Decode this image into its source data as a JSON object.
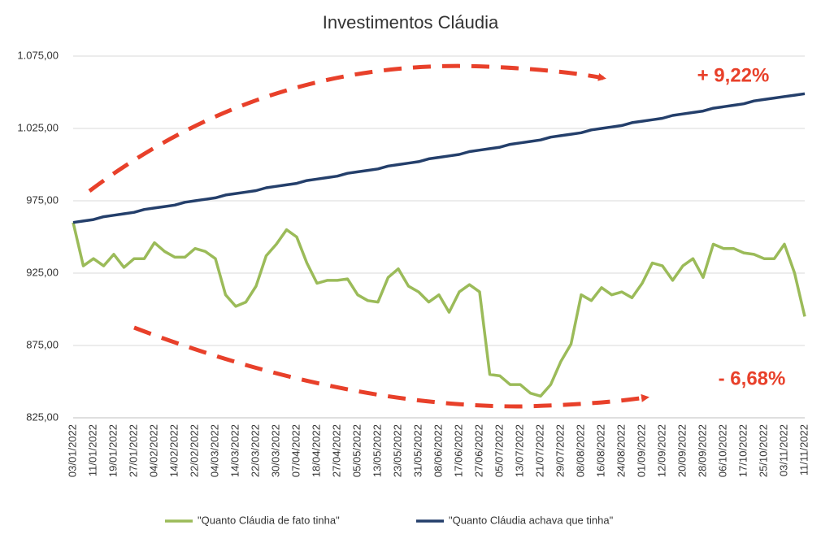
{
  "chart_data": {
    "type": "line",
    "title": "Investimentos Cláudia",
    "categories": [
      "03/01/2022",
      null,
      "11/01/2022",
      null,
      "19/01/2022",
      null,
      "27/01/2022",
      null,
      "04/02/2022",
      null,
      "14/02/2022",
      null,
      "22/02/2022",
      null,
      "04/03/2022",
      null,
      "14/03/2022",
      null,
      "22/03/2022",
      null,
      "30/03/2022",
      null,
      "07/04/2022",
      null,
      "18/04/2022",
      null,
      "27/04/2022",
      null,
      "05/05/2022",
      null,
      "13/05/2022",
      null,
      "23/05/2022",
      null,
      "31/05/2022",
      null,
      "08/06/2022",
      null,
      "17/06/2022",
      null,
      "27/06/2022",
      null,
      "05/07/2022",
      null,
      "13/07/2022",
      null,
      "21/07/2022",
      null,
      "29/07/2022",
      null,
      "08/08/2022",
      null,
      "16/08/2022",
      null,
      "24/08/2022",
      null,
      "01/09/2022",
      null,
      "12/09/2022",
      null,
      "20/09/2022",
      null,
      "28/09/2022",
      null,
      "06/10/2022",
      null,
      "17/10/2022",
      null,
      "25/10/2022",
      null,
      "03/11/2022",
      null,
      "11/11/2022"
    ],
    "series": [
      {
        "name": "\"Quanto Cláudia de fato tinha\"",
        "color": "#9bbb59",
        "values": [
          960,
          930,
          935,
          930,
          938,
          929,
          935,
          935,
          946,
          940,
          936,
          936,
          942,
          940,
          935,
          910,
          902,
          905,
          916,
          937,
          945,
          955,
          950,
          932,
          918,
          920,
          920,
          921,
          910,
          906,
          905,
          922,
          928,
          916,
          912,
          905,
          910,
          898,
          912,
          917,
          912,
          855,
          854,
          848,
          848,
          842,
          840,
          848,
          864,
          876,
          910,
          906,
          915,
          910,
          912,
          908,
          918,
          932,
          930,
          920,
          930,
          935,
          922,
          945,
          942,
          942,
          939,
          938,
          935,
          935,
          945,
          925,
          895
        ]
      },
      {
        "name": "\"Quanto Cláudia achava que tinha\"",
        "color": "#243f6b",
        "values": [
          960,
          961,
          962,
          964,
          965,
          966,
          967,
          969,
          970,
          971,
          972,
          974,
          975,
          976,
          977,
          979,
          980,
          981,
          982,
          984,
          985,
          986,
          987,
          989,
          990,
          991,
          992,
          994,
          995,
          996,
          997,
          999,
          1000,
          1001,
          1002,
          1004,
          1005,
          1006,
          1007,
          1009,
          1010,
          1011,
          1012,
          1014,
          1015,
          1016,
          1017,
          1019,
          1020,
          1021,
          1022,
          1024,
          1025,
          1026,
          1027,
          1029,
          1030,
          1031,
          1032,
          1034,
          1035,
          1036,
          1037,
          1039,
          1040,
          1041,
          1042,
          1044,
          1045,
          1046,
          1047,
          1048,
          1049
        ]
      }
    ],
    "ylim": [
      825,
      1075
    ],
    "yticks": [
      {
        "value": 825,
        "label": "825,00"
      },
      {
        "value": 875,
        "label": "875,00"
      },
      {
        "value": 925,
        "label": "925,00"
      },
      {
        "value": 975,
        "label": "975,00"
      },
      {
        "value": 1025,
        "label": "1.025,00"
      },
      {
        "value": 1075,
        "label": "1.075,00"
      }
    ],
    "grid": true,
    "annotations": [
      "+ 9,22%",
      "- 6,68%"
    ],
    "annotation_color": "#e8402a"
  }
}
